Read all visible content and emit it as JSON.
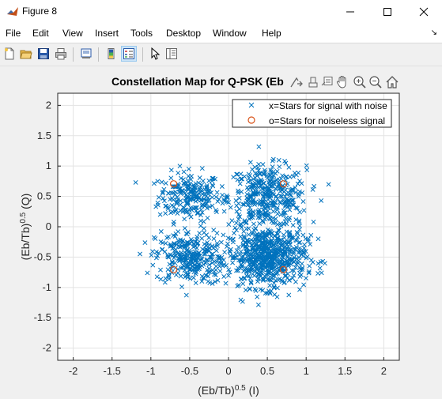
{
  "window": {
    "title": "Figure 8",
    "icon": "matlab-icon",
    "controls": [
      "minimize-icon",
      "maximize-icon",
      "close-icon"
    ]
  },
  "menu": {
    "items": [
      "File",
      "Edit",
      "View",
      "Insert",
      "Tools",
      "Desktop",
      "Window",
      "Help"
    ]
  },
  "toolbar": {
    "buttons": [
      "new-figure-icon",
      "open-icon",
      "save-icon",
      "print-icon",
      "print-preview-icon",
      "colorbar-icon",
      "legend-icon",
      "pointer-icon",
      "property-editor-icon"
    ]
  },
  "axes_toolbar": {
    "buttons": [
      "export-icon",
      "brush-icon",
      "data-tips-icon",
      "pan-icon",
      "zoom-in-icon",
      "zoom-out-icon",
      "home-icon"
    ]
  },
  "chart_data": {
    "type": "scatter",
    "title": "Constellation Map for Q-PSK (Eb",
    "xlabel": "(Eb/Tb)^0.5 (I)",
    "ylabel": "(Eb/Tb)^0.5 (Q)",
    "xlim": [
      -2.2,
      2.2
    ],
    "ylim": [
      -2.2,
      2.2
    ],
    "xticks": [
      -2,
      -1.5,
      -1,
      -0.5,
      0,
      0.5,
      1,
      1.5,
      2
    ],
    "yticks": [
      -2,
      -1.5,
      -1,
      -0.5,
      0,
      0.5,
      1,
      1.5,
      2
    ],
    "xtick_labels": [
      "-2",
      "-1.5",
      "-1",
      "-0.5",
      "0",
      "0.5",
      "1",
      "1.5",
      "2"
    ],
    "ytick_labels": [
      "-2",
      "-1.5",
      "-1",
      "-0.5",
      "0",
      "0.5",
      "1",
      "1.5",
      "2"
    ],
    "grid": true,
    "legend_position": "top-right",
    "series": [
      {
        "name": "x=Stars for signal with noise",
        "marker": "x",
        "color": "#0072bd",
        "clusters": [
          {
            "center": [
              -0.5,
              0.5
            ],
            "spread": 0.2,
            "count": 220
          },
          {
            "center": [
              0.5,
              0.5
            ],
            "spread": 0.25,
            "count": 380
          },
          {
            "center": [
              -0.5,
              -0.5
            ],
            "spread": 0.22,
            "count": 300
          },
          {
            "center": [
              0.5,
              -0.5
            ],
            "spread": 0.25,
            "count": 650
          }
        ]
      },
      {
        "name": "o=Stars for noiseless signal",
        "marker": "o",
        "color": "#d95319",
        "points": [
          [
            -0.707,
            0.707
          ],
          [
            0.707,
            0.707
          ],
          [
            -0.707,
            -0.707
          ],
          [
            0.707,
            -0.707
          ]
        ]
      }
    ]
  }
}
